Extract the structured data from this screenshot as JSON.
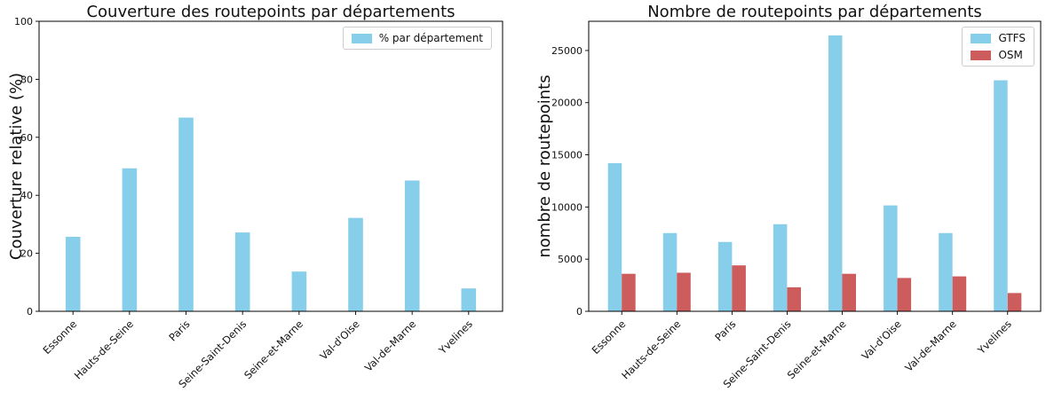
{
  "figure": {
    "background": "#ffffff"
  },
  "colors": {
    "gtfs_blue": "#87ceeb",
    "osm_red": "#cd5c5c",
    "axis_black": "#000000",
    "legend_border": "#cccccc",
    "text": "#111111"
  },
  "chart_data": [
    {
      "type": "bar",
      "title": "Couverture des routepoints par départements",
      "ylabel": "Couverture relative (%)",
      "xlabel": "",
      "categories": [
        "Essonne",
        "Hauts-de-Seine",
        "Paris",
        "Seine-Saint-Denis",
        "Seine-et-Marne",
        "Val-d'Oise",
        "Val-de-Marne",
        "Yvelines"
      ],
      "series": [
        {
          "name": "% par département",
          "color": "#87ceeb",
          "values": [
            25.7,
            49.3,
            66.8,
            27.2,
            13.7,
            32.2,
            45.1,
            7.9
          ]
        }
      ],
      "ylim": [
        0,
        100
      ],
      "yticks": [
        0,
        20,
        40,
        60,
        80,
        100
      ],
      "grid": false,
      "legend_position": "upper right",
      "x_tick_rotation": 45
    },
    {
      "type": "bar",
      "title": "Nombre de routepoints par départements",
      "ylabel": "nombre de routepoints",
      "xlabel": "",
      "categories": [
        "Essonne",
        "Hauts-de-Seine",
        "Paris",
        "Seine-Saint-Denis",
        "Seine-et-Marne",
        "Val-d'Oise",
        "Val-de-Marne",
        "Yvelines"
      ],
      "series": [
        {
          "name": "GTFS",
          "color": "#87ceeb",
          "values": [
            14200,
            7500,
            6650,
            8350,
            26450,
            10150,
            7500,
            22150
          ]
        },
        {
          "name": "OSM",
          "color": "#cd5c5c",
          "values": [
            3600,
            3700,
            4400,
            2300,
            3600,
            3200,
            3350,
            1750
          ]
        }
      ],
      "ylim": [
        0,
        27800
      ],
      "yticks": [
        0,
        5000,
        10000,
        15000,
        20000,
        25000
      ],
      "grid": false,
      "legend_position": "upper right",
      "x_tick_rotation": 45
    }
  ]
}
